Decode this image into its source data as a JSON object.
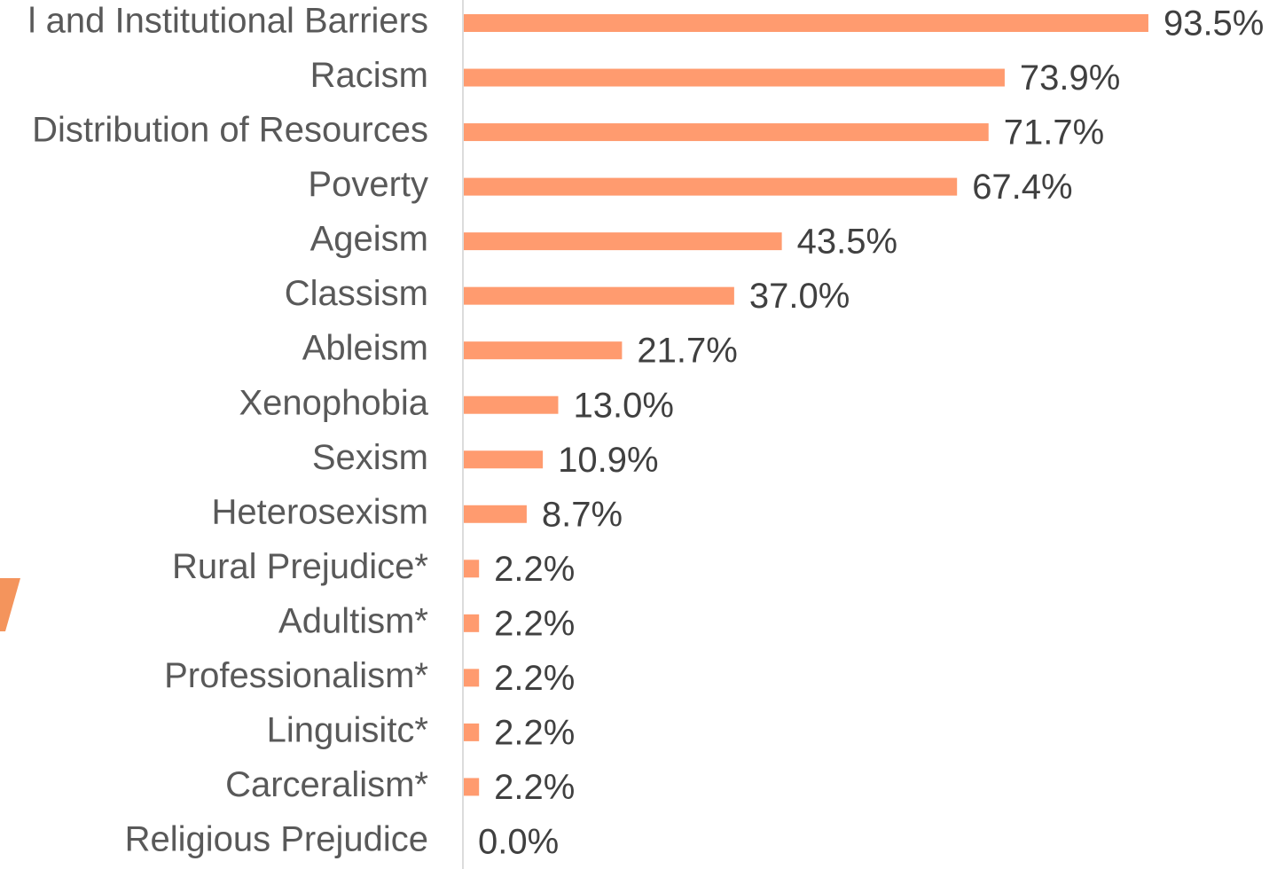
{
  "chart_data": {
    "type": "bar",
    "orientation": "horizontal",
    "color": "#ff9b6f",
    "categories": [
      "l and Institutional Barriers",
      "Racism",
      "Distribution of Resources",
      "Poverty",
      "Ageism",
      "Classism",
      "Ableism",
      "Xenophobia",
      "Sexism",
      "Heterosexism",
      "Rural Prejudice*",
      "Adultism*",
      "Professionalism*",
      "Linguisitc*",
      "Carceralism*",
      "Religious Prejudice"
    ],
    "values": [
      93.5,
      73.9,
      71.7,
      67.4,
      43.5,
      37.0,
      21.7,
      13.0,
      10.9,
      8.7,
      2.2,
      2.2,
      2.2,
      2.2,
      2.2,
      0.0
    ],
    "value_labels": [
      "93.5%",
      "73.9%",
      "71.7%",
      "67.4%",
      "43.5%",
      "37.0%",
      "21.7%",
      "13.0%",
      "10.9%",
      "8.7%",
      "2.2%",
      "2.2%",
      "2.2%",
      "2.2%",
      "2.2%",
      "0.0%"
    ]
  }
}
